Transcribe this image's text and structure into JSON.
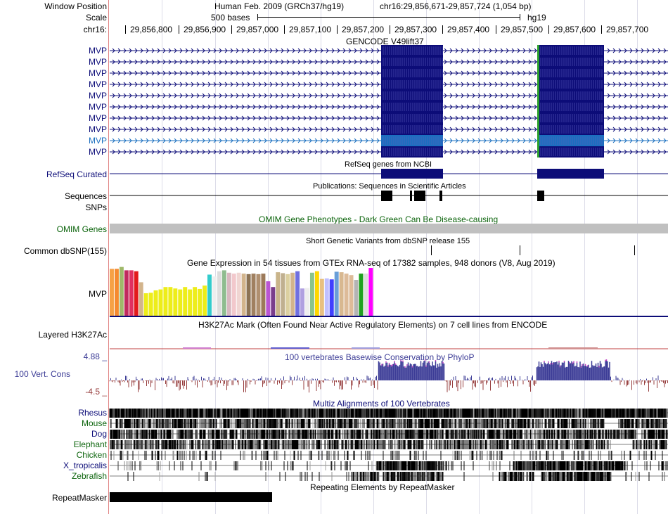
{
  "header": {
    "window_position_label": "Window Position",
    "scale_label": "Scale",
    "chrom_label": "chr16:",
    "assembly": "Human Feb. 2009 (GRCh37/hg19)",
    "position": "chr16:29,856,671-29,857,724 (1,054 bp)",
    "scale_text": "500 bases",
    "db": "hg19",
    "ticks": [
      "29,856,800",
      "29,856,900",
      "29,857,000",
      "29,857,100",
      "29,857,200",
      "29,857,300",
      "29,857,400",
      "29,857,500",
      "29,857,600",
      "29,857,700"
    ]
  },
  "tracks": {
    "gencode": {
      "title": "GENCODE V49lift37",
      "items": [
        "MVP",
        "MVP",
        "MVP",
        "MVP",
        "MVP",
        "MVP",
        "MVP",
        "MVP",
        "MVP",
        "MVP"
      ],
      "color": "#0c0c78",
      "highlight_color": "#1a6fbf"
    },
    "refseq": {
      "label": "RefSeq Curated",
      "title": "RefSeq genes from NCBI"
    },
    "pubs": {
      "title": "Publications: Sequences in Scientific Articles",
      "label1": "Sequences",
      "label2": "SNPs"
    },
    "omim": {
      "label": "OMIM Genes",
      "title": "OMIM Gene Phenotypes - Dark Green Can Be Disease-causing",
      "color": "#006400"
    },
    "dbsnp": {
      "label": "Common dbSNP(155)",
      "title": "Short Genetic Variants from dbSNP release 155"
    },
    "gtex": {
      "label": "MVP",
      "title": "Gene Expression in 54 tissues from GTEx RNA-seq of 17382 samples, 948 donors (V8, Aug 2019)",
      "values": [
        0.98,
        0.98,
        1.02,
        0.95,
        0.95,
        0.93,
        0.7,
        0.47,
        0.48,
        0.53,
        0.55,
        0.6,
        0.6,
        0.57,
        0.55,
        0.6,
        0.55,
        0.6,
        0.56,
        0.63,
        0.86,
        0.82,
        0.93,
        0.95,
        0.9,
        0.88,
        0.9,
        0.88,
        0.87,
        0.88,
        0.87,
        0.88,
        0.72,
        0.6,
        0.91,
        0.89,
        0.87,
        0.9,
        0.93,
        0.57,
        0.58,
        0.9,
        0.93,
        0.77,
        0.78,
        0.76,
        0.92,
        0.91,
        0.88,
        0.85,
        0.75,
        0.88,
        0.88,
        1.0
      ],
      "colors": [
        "#f6a146",
        "#f58a30",
        "#9fb96a",
        "#c02b5e",
        "#e03060",
        "#e31a1c",
        "#d2b48c",
        "#eded1a",
        "#eded1a",
        "#eded1a",
        "#eded1a",
        "#eded1a",
        "#eded1a",
        "#eded1a",
        "#eded1a",
        "#eded1a",
        "#eded1a",
        "#eded1a",
        "#eded1a",
        "#eded1a",
        "#33cccc",
        "#eeeeee",
        "#dddddd",
        "#8fbc8f",
        "#d9b8c0",
        "#f2c8cc",
        "#f0d5d2",
        "#d2b48c",
        "#8c7355",
        "#a08060",
        "#b09070",
        "#9c7a5a",
        "#ba55d3",
        "#7a3d8c",
        "#c9b48a",
        "#c0b090",
        "#dcd0a0",
        "#d2b48c",
        "#7070e0",
        "#b0a0e0",
        "#eeeeee",
        "#8bc48b",
        "#ffd700",
        "#e8c080",
        "#c0c0ff",
        "#4040ff",
        "#6a9fd8",
        "#d8b890",
        "#ddbb99",
        "#ddbb99",
        "#b4b4b4",
        "#20a020",
        "#dddddd",
        "#ff00ff"
      ]
    },
    "h3k27ac": {
      "label": "Layered H3K27Ac",
      "title": "H3K27Ac Mark (Often Found Near Active Regulatory Elements) on 7 cell lines from ENCODE"
    },
    "cons": {
      "label": "100 Vert. Cons",
      "title": "100 vertebrates Basewise Conservation by PhyloP",
      "max": "4.88 _",
      "min": "-4.5 _",
      "pos_color": "#3c3c96",
      "neg_color": "#963c3c"
    },
    "multiz": {
      "title": "Multiz Alignments of 100 Vertebrates",
      "species": [
        {
          "name": "Rhesus",
          "color": "#0c0c78"
        },
        {
          "name": "Mouse",
          "color": "#0c640c"
        },
        {
          "name": "Dog",
          "color": "#0c0c78"
        },
        {
          "name": "Elephant",
          "color": "#0c640c"
        },
        {
          "name": "Chicken",
          "color": "#0c640c"
        },
        {
          "name": "X_tropicalis",
          "color": "#0c0c78"
        },
        {
          "name": "Zebrafish",
          "color": "#0c640c"
        }
      ]
    },
    "rmsk": {
      "label": "RepeatMasker",
      "title": "Repeating Elements by RepeatMasker"
    }
  }
}
